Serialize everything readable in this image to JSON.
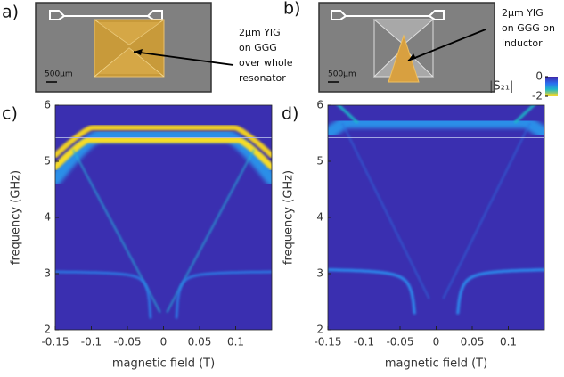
{
  "panels": {
    "a": {
      "letter": "a)",
      "text": [
        "2μm YIG",
        "on GGG",
        "over whole",
        "resonator"
      ],
      "scale": "500μm"
    },
    "b": {
      "letter": "b)",
      "text": [
        "2μm YIG",
        "on GGG on",
        "inductor"
      ],
      "scale": "500μm"
    }
  },
  "colorbar": {
    "label": "|S₂₁|",
    "ticks": [
      0,
      -2
    ]
  },
  "chart_data": [
    {
      "type": "heatmap",
      "panel": "c)",
      "xlabel": "magnetic field (T)",
      "ylabel": "frequency (GHz)",
      "xlim": [
        -0.15,
        0.15
      ],
      "ylim": [
        2,
        6
      ],
      "xticks": [
        -0.15,
        -0.1,
        -0.05,
        0,
        0.05,
        0.1
      ],
      "yticks": [
        2,
        3,
        4,
        5,
        6
      ]
    },
    {
      "type": "heatmap",
      "panel": "d)",
      "xlabel": "magnetic field (T)",
      "ylabel": "frequency (GHz)",
      "xlim": [
        -0.15,
        0.15
      ],
      "ylim": [
        2,
        6
      ],
      "xticks": [
        -0.15,
        -0.1,
        -0.05,
        0,
        0.05,
        0.1
      ],
      "yticks": [
        2,
        3,
        4,
        5,
        6
      ]
    }
  ]
}
